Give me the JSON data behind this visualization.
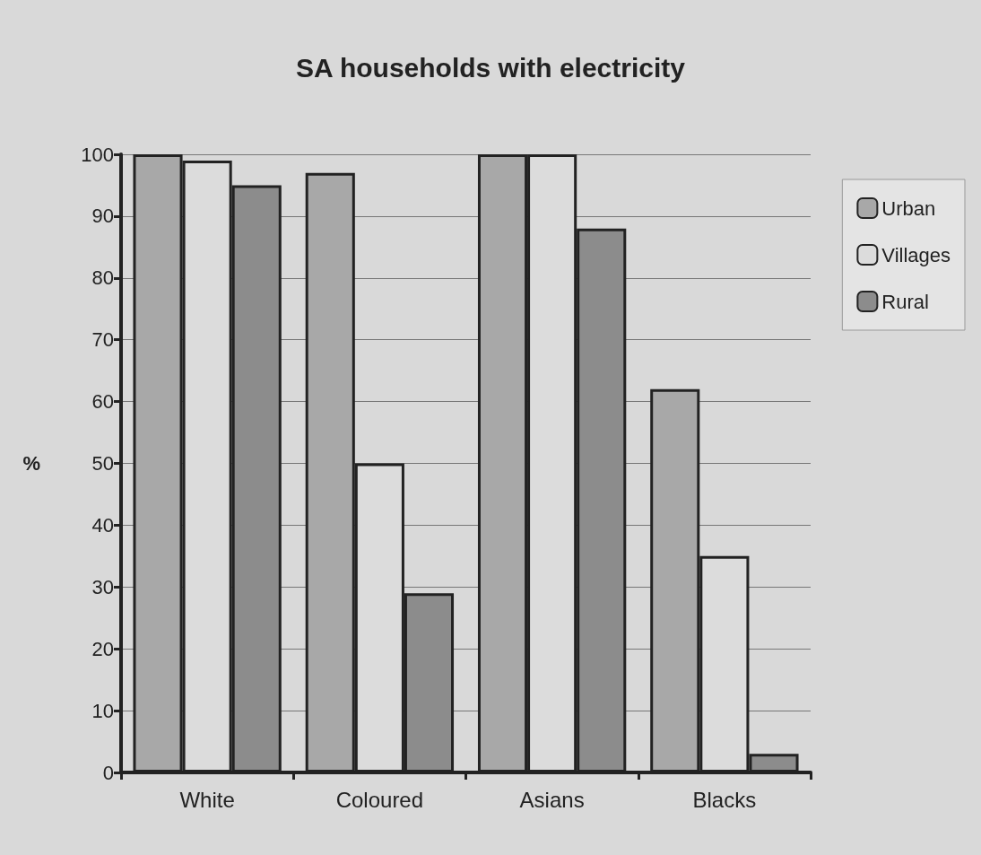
{
  "chart_data": {
    "type": "bar",
    "title": "SA households with electricity",
    "ylabel": "%",
    "categories": [
      "White",
      "Coloured",
      "Asians",
      "Blacks"
    ],
    "series": [
      {
        "name": "Urban",
        "color": "#a8a8a8",
        "values": [
          100,
          97,
          100,
          62
        ]
      },
      {
        "name": "Villages",
        "color": "#dcdcdc",
        "values": [
          99,
          50,
          100,
          35
        ]
      },
      {
        "name": "Rural",
        "color": "#8c8c8c",
        "values": [
          95,
          29,
          88,
          3
        ]
      }
    ],
    "ylim": [
      0,
      100
    ],
    "yticks": [
      0,
      10,
      20,
      30,
      40,
      50,
      60,
      70,
      80,
      90,
      100
    ],
    "grid": "y",
    "legend": "top right"
  }
}
